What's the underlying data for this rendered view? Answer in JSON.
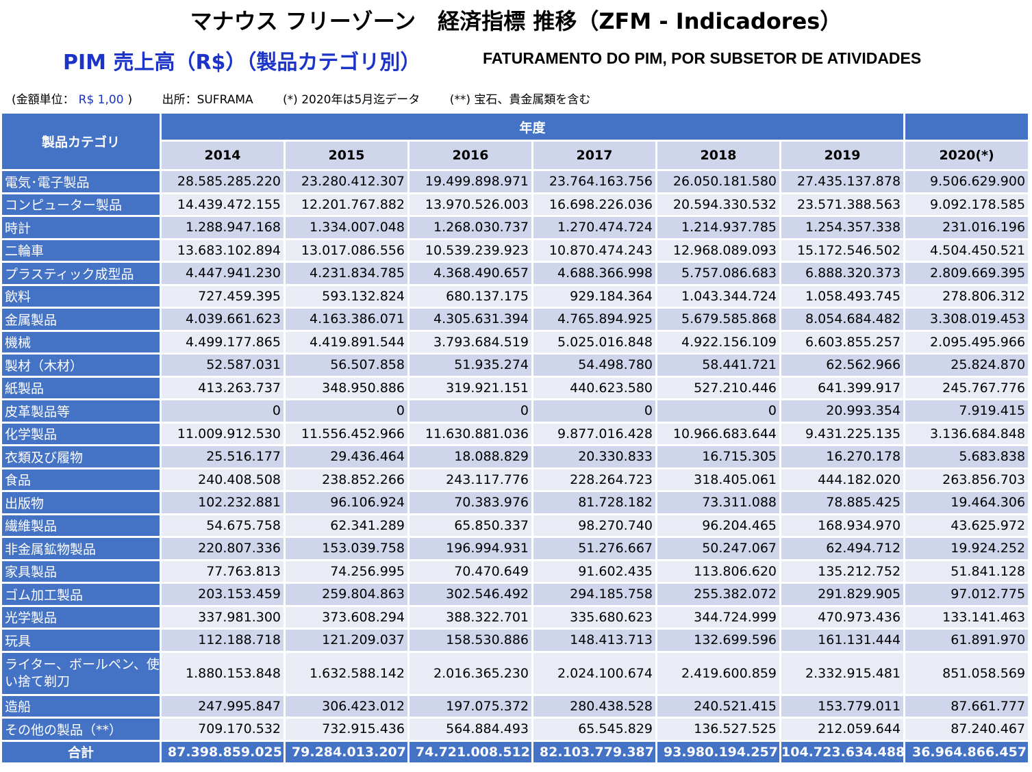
{
  "title": "マナウス フリーゾーン　経済指標 推移（ZFM - Indicadores）",
  "subtitle_jp": "PIM 売上高（R$）（製品カテゴリ別）",
  "subtitle_pt": "FATURAMENTO DO PIM, POR SUBSETOR DE ATIVIDADES",
  "notes": {
    "unit_label": "(金額単位：",
    "unit_value": "R$ 1,00",
    "unit_close": ")",
    "source": "出所：SUFRAMA",
    "note1": "(*) 2020年は5月迄データ",
    "note2": "(**) 宝石、貴金属類を含む"
  },
  "table": {
    "category_header": "製品カテゴリ",
    "year_header": "年度",
    "years": [
      "2014",
      "2015",
      "2016",
      "2017",
      "2018",
      "2019",
      "2020(*)"
    ],
    "rows": [
      {
        "category": "電気･電子製品",
        "values": [
          "28.585.285.220",
          "23.280.412.307",
          "19.499.898.971",
          "23.764.163.756",
          "26.050.181.580",
          "27.435.137.878",
          "9.506.629.900"
        ]
      },
      {
        "category": "コンピューター製品",
        "values": [
          "14.439.472.155",
          "12.201.767.882",
          "13.970.526.003",
          "16.698.226.036",
          "20.594.330.532",
          "23.571.388.563",
          "9.092.178.585"
        ]
      },
      {
        "category": "時計",
        "values": [
          "1.288.947.168",
          "1.334.007.048",
          "1.268.030.737",
          "1.270.474.724",
          "1.214.937.785",
          "1.254.357.338",
          "231.016.196"
        ]
      },
      {
        "category": "二輪車",
        "values": [
          "13.683.102.894",
          "13.017.086.556",
          "10.539.239.923",
          "10.870.474.243",
          "12.968.089.093",
          "15.172.546.502",
          "4.504.450.521"
        ]
      },
      {
        "category": "プラスティック成型品",
        "values": [
          "4.447.941.230",
          "4.231.834.785",
          "4.368.490.657",
          "4.688.366.998",
          "5.757.086.683",
          "6.888.320.373",
          "2.809.669.395"
        ]
      },
      {
        "category": "飲料",
        "values": [
          "727.459.395",
          "593.132.824",
          "680.137.175",
          "929.184.364",
          "1.043.344.724",
          "1.058.493.745",
          "278.806.312"
        ]
      },
      {
        "category": "金属製品",
        "values": [
          "4.039.661.623",
          "4.163.386.071",
          "4.305.631.394",
          "4.765.894.925",
          "5.679.585.868",
          "8.054.684.482",
          "3.308.019.453"
        ]
      },
      {
        "category": "機械",
        "values": [
          "4.499.177.865",
          "4.419.891.544",
          "3.793.684.519",
          "5.025.016.848",
          "4.922.156.109",
          "6.603.855.257",
          "2.095.495.966"
        ]
      },
      {
        "category": "製材（木材）",
        "values": [
          "52.587.031",
          "56.507.858",
          "51.935.274",
          "54.498.780",
          "58.441.721",
          "62.562.966",
          "25.824.870"
        ]
      },
      {
        "category": "紙製品",
        "values": [
          "413.263.737",
          "348.950.886",
          "319.921.151",
          "440.623.580",
          "527.210.446",
          "641.399.917",
          "245.767.776"
        ]
      },
      {
        "category": "皮革製品等",
        "values": [
          "0",
          "0",
          "0",
          "0",
          "0",
          "20.993.354",
          "7.919.415"
        ]
      },
      {
        "category": "化学製品",
        "values": [
          "11.009.912.530",
          "11.556.452.966",
          "11.630.881.036",
          "9.877.016.428",
          "10.966.683.644",
          "9.431.225.135",
          "3.136.684.848"
        ]
      },
      {
        "category": "衣類及び履物",
        "values": [
          "25.516.177",
          "29.436.464",
          "18.088.829",
          "20.330.833",
          "16.715.305",
          "16.270.178",
          "5.683.838"
        ]
      },
      {
        "category": "食品",
        "values": [
          "240.408.508",
          "238.852.266",
          "243.117.776",
          "228.264.723",
          "318.405.061",
          "444.182.020",
          "263.856.703"
        ]
      },
      {
        "category": "出版物",
        "values": [
          "102.232.881",
          "96.106.924",
          "70.383.976",
          "81.728.182",
          "73.311.088",
          "78.885.425",
          "19.464.306"
        ]
      },
      {
        "category": "繊維製品",
        "values": [
          "54.675.758",
          "62.341.289",
          "65.850.337",
          "98.270.740",
          "96.204.465",
          "168.934.970",
          "43.625.972"
        ]
      },
      {
        "category": "非金属鉱物製品",
        "values": [
          "220.807.336",
          "153.039.758",
          "196.994.931",
          "51.276.667",
          "50.247.067",
          "62.494.712",
          "19.924.252"
        ]
      },
      {
        "category": "家具製品",
        "values": [
          "77.763.813",
          "74.256.995",
          "70.470.649",
          "91.602.435",
          "113.806.620",
          "135.212.752",
          "51.841.128"
        ]
      },
      {
        "category": "ゴム加工製品",
        "values": [
          "203.153.459",
          "259.804.863",
          "302.546.492",
          "294.185.758",
          "255.382.072",
          "291.829.905",
          "97.012.775"
        ]
      },
      {
        "category": "光学製品",
        "values": [
          "337.981.300",
          "373.608.294",
          "388.322.701",
          "335.680.623",
          "344.724.999",
          "470.973.436",
          "133.141.463"
        ]
      },
      {
        "category": "玩具",
        "values": [
          "112.188.718",
          "121.209.037",
          "158.530.886",
          "148.413.713",
          "132.699.596",
          "161.131.444",
          "61.891.970"
        ]
      },
      {
        "category": "ライター、ボールペン、使い捨て剃刀",
        "values": [
          "1.880.153.848",
          "1.632.588.142",
          "2.016.365.230",
          "2.024.100.674",
          "2.419.600.859",
          "2.332.915.481",
          "851.058.569"
        ]
      },
      {
        "category": "造船",
        "values": [
          "247.995.847",
          "306.423.012",
          "197.075.372",
          "280.438.528",
          "240.521.415",
          "153.779.011",
          "87.661.777"
        ]
      },
      {
        "category": "その他の製品（**）",
        "values": [
          "709.170.532",
          "732.915.436",
          "564.884.493",
          "65.545.829",
          "136.527.525",
          "212.059.644",
          "87.240.467"
        ]
      }
    ],
    "total": {
      "label": "合計",
      "values": [
        "87.398.859.025",
        "79.284.013.207",
        "74.721.008.512",
        "82.103.779.387",
        "93.980.194.257",
        "104.723.634.488",
        "36.964.866.457"
      ]
    }
  }
}
